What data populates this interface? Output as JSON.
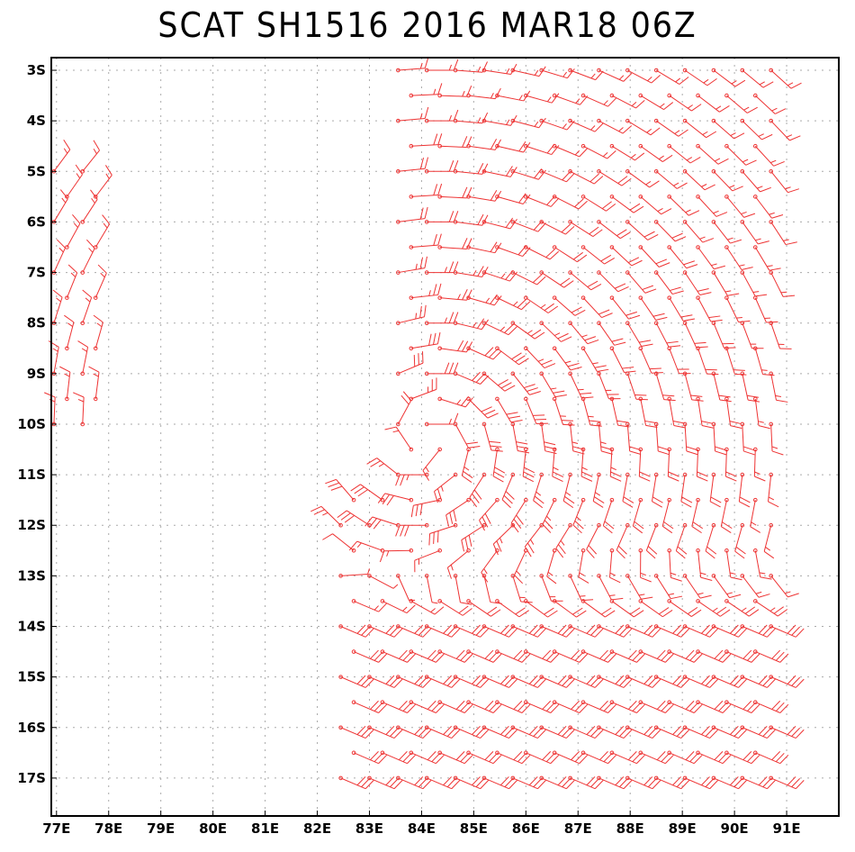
{
  "title": "SCAT SH1516 2016 MAR18 06Z",
  "axes": {
    "lon_labels": [
      "77E",
      "78E",
      "79E",
      "80E",
      "81E",
      "82E",
      "83E",
      "84E",
      "85E",
      "86E",
      "87E",
      "88E",
      "89E",
      "90E",
      "91E"
    ],
    "lat_labels": [
      "3S",
      "4S",
      "5S",
      "6S",
      "7S",
      "8S",
      "9S",
      "10S",
      "11S",
      "12S",
      "13S",
      "14S",
      "15S",
      "16S",
      "17S"
    ],
    "lon_range": [
      76.9,
      92.0
    ],
    "lat_range": [
      -2.75,
      -17.75
    ]
  },
  "colors": {
    "barb": "#ee3333",
    "grid": "#aaaaaa",
    "frame": "#000000"
  },
  "grid": true,
  "chart_data": {
    "type": "wind_barb_map",
    "units": "knots (estimated)",
    "cyclone_center": {
      "lon": 84.1,
      "lat": -10.3
    },
    "coverage": [
      {
        "lon_min": 76.9,
        "lon_max": 77.8,
        "lat_min": -5.0,
        "lat_max": -10.3
      },
      {
        "lon_min": 83.3,
        "lon_max": 90.9,
        "lat_min": -2.9,
        "lat_max": -11.5
      },
      {
        "lon_min": 82.3,
        "lon_max": 90.7,
        "lat_min": -11.5,
        "lat_max": -17.3
      }
    ]
  }
}
